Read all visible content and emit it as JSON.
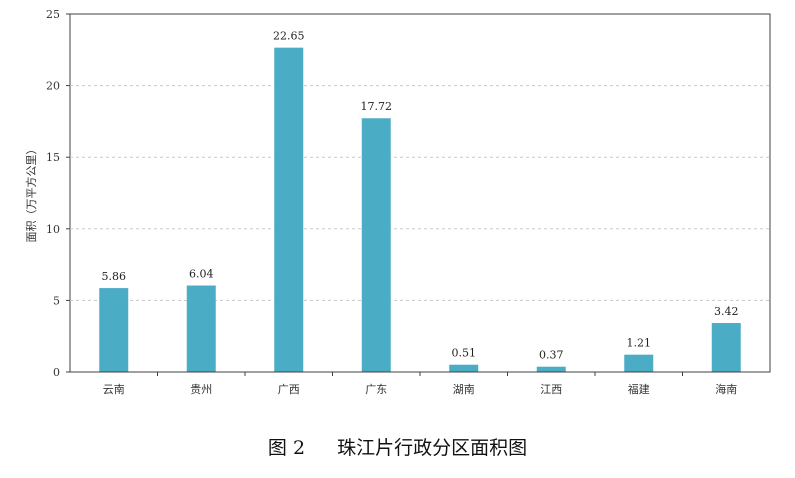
{
  "caption": {
    "figure_number": "图 2",
    "title": "珠江片行政分区面积图"
  },
  "colors": {
    "bar": "#4BACC6",
    "grid": "#C8C8C8",
    "axis": "#404040",
    "frame": "#404040"
  },
  "chart_data": {
    "type": "bar",
    "title": "",
    "xlabel": "",
    "ylabel": "面积（万平方公里）",
    "categories": [
      "云南",
      "贵州",
      "广西",
      "广东",
      "湖南",
      "江西",
      "福建",
      "海南"
    ],
    "values": [
      5.86,
      6.04,
      22.65,
      17.72,
      0.51,
      0.37,
      1.21,
      3.42
    ],
    "data_labels": [
      "5.86",
      "6.04",
      "22.65",
      "17.72",
      "0.51",
      "0.37",
      "1.21",
      "3.42"
    ],
    "ylim": [
      0,
      25
    ],
    "yticks": [
      0,
      5,
      10,
      15,
      20,
      25
    ],
    "grid": "horizontal-dashed",
    "legend": "none"
  }
}
